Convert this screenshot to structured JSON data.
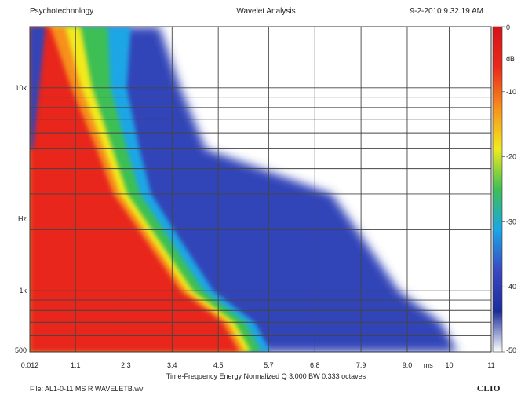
{
  "header": {
    "left": "Psychotechnology",
    "center": "Wavelet Analysis",
    "right": "9-2-2010 9.32.19 AM"
  },
  "chart_data": {
    "type": "heatmap",
    "title": "Wavelet Analysis",
    "xlabel": "Time-Frequency Energy   Normalized  Q 3.000 BW 0.333 octaves",
    "x_unit": "ms",
    "x_ticks": [
      "0.012",
      "1.1",
      "2.3",
      "3.4",
      "4.5",
      "5.7",
      "6.8",
      "7.9",
      "9.0",
      "10",
      "11"
    ],
    "xlim": [
      0.012,
      11
    ],
    "ylabel": "Hz",
    "y_ticks": [
      "10k",
      "1k",
      "500"
    ],
    "ylim_hz": [
      500,
      20000
    ],
    "y_scale": "log",
    "colorbar": {
      "unit": "dB",
      "ticks": [
        "0",
        "-10",
        "-20",
        "-30",
        "-40",
        "-50"
      ],
      "range": [
        -50,
        0
      ],
      "stops": [
        "#ffffff",
        "#1b2d9a",
        "#3a48c4",
        "#1aa6e6",
        "#3dbf55",
        "#f2ea1e",
        "#f7901e",
        "#ea2a1a",
        "#d8121a"
      ]
    },
    "energy_ridge": [
      {
        "freq_hz": 20000,
        "end_ms": 0.5
      },
      {
        "freq_hz": 10000,
        "end_ms": 1.0
      },
      {
        "freq_hz": 5000,
        "end_ms": 1.6
      },
      {
        "freq_hz": 3000,
        "end_ms": 2.0
      },
      {
        "freq_hz": 2000,
        "end_ms": 2.6
      },
      {
        "freq_hz": 1000,
        "end_ms": 3.6
      },
      {
        "freq_hz": 700,
        "end_ms": 4.6
      },
      {
        "freq_hz": 500,
        "end_ms": 5.0
      }
    ]
  },
  "footer": {
    "file": "File: AL1-0-11 MS R WAVELETB.wvl",
    "brand": "CLIO"
  }
}
